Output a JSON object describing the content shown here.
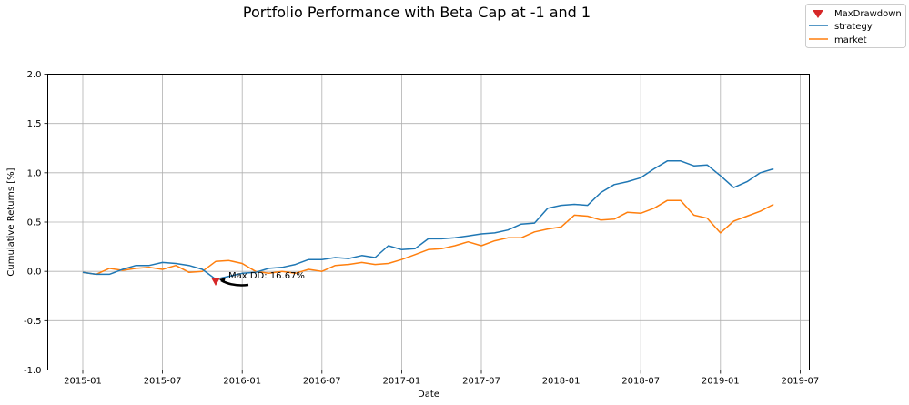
{
  "chart_data": {
    "type": "line",
    "title": "Portfolio Performance with Beta Cap at -1 and 1",
    "xlabel": "Date",
    "ylabel": "Cumulative Returns [%]",
    "ylim": [
      -1.0,
      2.0
    ],
    "yticks": [
      "-1.0",
      "-0.5",
      "0.0",
      "0.5",
      "1.0",
      "1.5",
      "2.0"
    ],
    "xticks": [
      "2015-01",
      "2015-07",
      "2016-01",
      "2016-07",
      "2017-01",
      "2017-07",
      "2018-01",
      "2018-07",
      "2019-01",
      "2019-07"
    ],
    "grid": true,
    "legend_position": "top-right",
    "x": [
      "2015-01",
      "2015-02",
      "2015-03",
      "2015-04",
      "2015-05",
      "2015-06",
      "2015-07",
      "2015-08",
      "2015-09",
      "2015-10",
      "2015-11",
      "2015-12",
      "2016-01",
      "2016-02",
      "2016-03",
      "2016-04",
      "2016-05",
      "2016-06",
      "2016-07",
      "2016-08",
      "2016-09",
      "2016-10",
      "2016-11",
      "2016-12",
      "2017-01",
      "2017-02",
      "2017-03",
      "2017-04",
      "2017-05",
      "2017-06",
      "2017-07",
      "2017-08",
      "2017-09",
      "2017-10",
      "2017-11",
      "2017-12",
      "2018-01",
      "2018-02",
      "2018-03",
      "2018-04",
      "2018-05",
      "2018-06",
      "2018-07",
      "2018-08",
      "2018-09",
      "2018-10",
      "2018-11",
      "2018-12",
      "2019-01",
      "2019-02",
      "2019-03",
      "2019-04",
      "2019-05"
    ],
    "series": [
      {
        "name": "strategy",
        "color": "#1f77b4",
        "values": [
          -0.01,
          -0.03,
          -0.03,
          0.02,
          0.06,
          0.06,
          0.09,
          0.08,
          0.06,
          0.02,
          -0.08,
          -0.05,
          -0.02,
          -0.01,
          0.03,
          0.04,
          0.07,
          0.12,
          0.12,
          0.14,
          0.13,
          0.16,
          0.14,
          0.26,
          0.22,
          0.23,
          0.33,
          0.33,
          0.34,
          0.36,
          0.38,
          0.39,
          0.42,
          0.48,
          0.49,
          0.64,
          0.67,
          0.68,
          0.67,
          0.8,
          0.88,
          0.91,
          0.95,
          1.04,
          1.12,
          1.12,
          1.07,
          1.08,
          0.97,
          0.85,
          0.91,
          1.0,
          1.04
        ]
      },
      {
        "name": "market",
        "color": "#ff7f0e",
        "values": [
          -0.01,
          -0.03,
          0.03,
          0.01,
          0.03,
          0.04,
          0.02,
          0.06,
          -0.01,
          0.0,
          0.1,
          0.11,
          0.08,
          0.0,
          -0.02,
          0.0,
          -0.02,
          0.02,
          0.0,
          0.06,
          0.07,
          0.09,
          0.07,
          0.08,
          0.12,
          0.17,
          0.22,
          0.23,
          0.26,
          0.3,
          0.26,
          0.31,
          0.34,
          0.34,
          0.4,
          0.43,
          0.45,
          0.57,
          0.56,
          0.52,
          0.53,
          0.6,
          0.59,
          0.64,
          0.72,
          0.72,
          0.57,
          0.54,
          0.39,
          0.51,
          0.56,
          0.61,
          0.68
        ]
      }
    ],
    "max_drawdown": {
      "name": "MaxDrawdown",
      "x": "2015-11",
      "value": -0.1,
      "color": "#d62728",
      "label": "Max DD: 16.67%"
    }
  }
}
